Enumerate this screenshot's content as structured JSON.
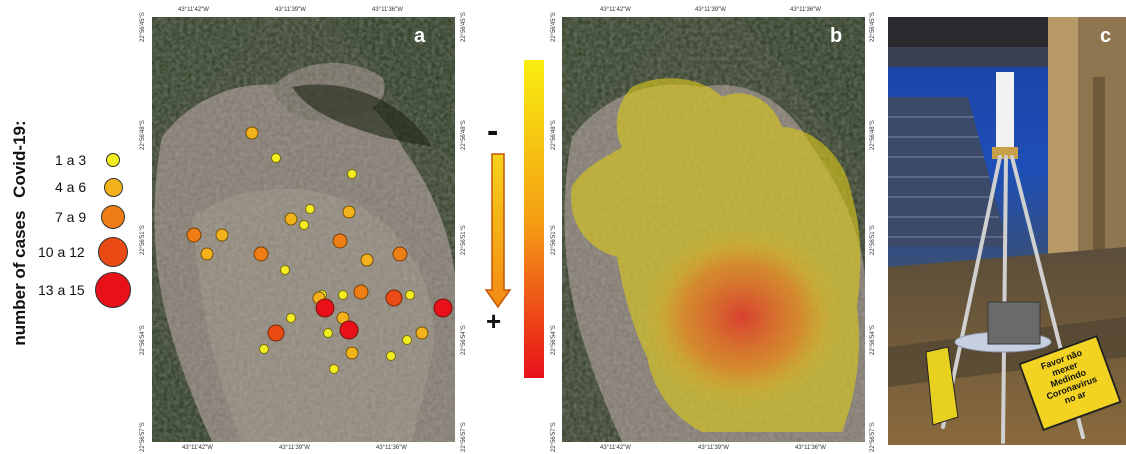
{
  "legend": {
    "title_part1": "number of cases",
    "title_part2": "Covid-19:",
    "classes": [
      {
        "label": "1 a 3",
        "color": "#f3ee20"
      },
      {
        "label": "4 a 6",
        "color": "#f1b21c"
      },
      {
        "label": "7 a 9",
        "color": "#ee7d16"
      },
      {
        "label": "10 a 12",
        "color": "#ea4a14"
      },
      {
        "label": "13 a 15",
        "color": "#e8111a"
      }
    ]
  },
  "panel_a": {
    "letter": "a",
    "top_coords": [
      "43°11'42\"W",
      "43°11'39\"W",
      "43°11'36\"W"
    ],
    "bottom_coords": [
      "43°11'42\"W",
      "43°11'39\"W",
      "43°11'36\"W"
    ],
    "side_coords": [
      "22°56'45\"S",
      "22°56'48\"S",
      "22°56'51\"S",
      "22°56'54\"S",
      "22°56'57\"S"
    ]
  },
  "gradient_scale": {
    "minus_label": "-",
    "plus_label": "+",
    "top_color": "#f8ee10",
    "bottom_color": "#e8101a"
  },
  "panel_b": {
    "letter": "b",
    "top_coords": [
      "43°11'42\"W",
      "43°11'39\"W",
      "43°11'36\"W"
    ],
    "bottom_coords": [
      "43°11'42\"W",
      "43°11'39\"W",
      "43°11'36\"W"
    ],
    "side_coords": [
      "22°56'45\"S",
      "22°56'48\"S",
      "22°56'51\"S",
      "22°56'54\"S",
      "22°56'57\"S"
    ]
  },
  "panel_c": {
    "letter": "c",
    "sign_lines": [
      "Favor não",
      "mexer",
      "Medindo",
      "Coronavirus",
      "no ar"
    ]
  },
  "cases": [
    {
      "lon": 0.33,
      "lat": 0.3,
      "cls": 1
    },
    {
      "lon": 0.41,
      "lat": 0.38,
      "cls": 0
    },
    {
      "lon": 0.66,
      "lat": 0.43,
      "cls": 0
    },
    {
      "lon": 0.65,
      "lat": 0.55,
      "cls": 1
    },
    {
      "lon": 0.52,
      "lat": 0.54,
      "cls": 0
    },
    {
      "lon": 0.46,
      "lat": 0.57,
      "cls": 1
    },
    {
      "lon": 0.5,
      "lat": 0.59,
      "cls": 0
    },
    {
      "lon": 0.14,
      "lat": 0.62,
      "cls": 2
    },
    {
      "lon": 0.23,
      "lat": 0.62,
      "cls": 1
    },
    {
      "lon": 0.62,
      "lat": 0.64,
      "cls": 2
    },
    {
      "lon": 0.18,
      "lat": 0.68,
      "cls": 1
    },
    {
      "lon": 0.36,
      "lat": 0.68,
      "cls": 2
    },
    {
      "lon": 0.71,
      "lat": 0.7,
      "cls": 1
    },
    {
      "lon": 0.82,
      "lat": 0.68,
      "cls": 2
    },
    {
      "lon": 0.44,
      "lat": 0.73,
      "cls": 0
    },
    {
      "lon": 0.56,
      "lat": 0.81,
      "cls": 0
    },
    {
      "lon": 0.63,
      "lat": 0.81,
      "cls": 0
    },
    {
      "lon": 0.69,
      "lat": 0.8,
      "cls": 2
    },
    {
      "lon": 0.55,
      "lat": 0.82,
      "cls": 1
    },
    {
      "lon": 0.8,
      "lat": 0.82,
      "cls": 3
    },
    {
      "lon": 0.85,
      "lat": 0.81,
      "cls": 0
    },
    {
      "lon": 0.57,
      "lat": 0.85,
      "cls": 4
    },
    {
      "lon": 0.96,
      "lat": 0.85,
      "cls": 4
    },
    {
      "lon": 0.46,
      "lat": 0.88,
      "cls": 0
    },
    {
      "lon": 0.63,
      "lat": 0.88,
      "cls": 1
    },
    {
      "lon": 0.65,
      "lat": 0.92,
      "cls": 4
    },
    {
      "lon": 0.41,
      "lat": 0.93,
      "cls": 3
    },
    {
      "lon": 0.58,
      "lat": 0.93,
      "cls": 0
    },
    {
      "lon": 0.89,
      "lat": 0.93,
      "cls": 1
    },
    {
      "lon": 0.84,
      "lat": 0.95,
      "cls": 0
    },
    {
      "lon": 0.37,
      "lat": 0.98,
      "cls": 0
    },
    {
      "lon": 0.66,
      "lat": 0.99,
      "cls": 1
    },
    {
      "lon": 0.79,
      "lat": 1.0,
      "cls": 0
    },
    {
      "lon": 0.6,
      "lat": 1.04,
      "cls": 0
    }
  ]
}
